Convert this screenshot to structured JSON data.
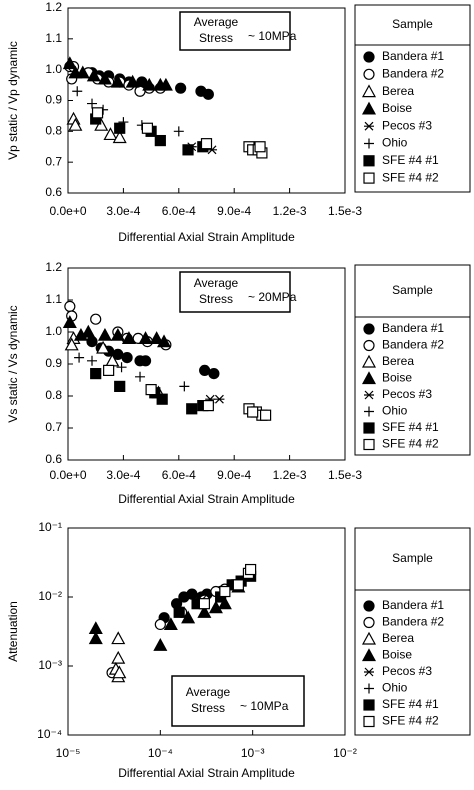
{
  "chart_data": [
    {
      "type": "scatter",
      "xlabel": "Differential Axial Strain Amplitude",
      "ylabel": "Vp static / Vp dynamic",
      "annotation": [
        "Average",
        "Stress",
        "~ 10MPa"
      ],
      "legend_title": "Sample",
      "legend": "outside-right",
      "xlim": [
        0,
        0.0015
      ],
      "ylim": [
        0.6,
        1.2
      ],
      "xscale": "linear",
      "yscale": "linear",
      "xticks": [
        {
          "value": 0,
          "label": "0.0e+0"
        },
        {
          "value": 0.0003,
          "label": "3.0e-4"
        },
        {
          "value": 0.0006,
          "label": "6.0e-4"
        },
        {
          "value": 0.0009,
          "label": "9.0e-4"
        },
        {
          "value": 0.0012,
          "label": "1.2e-3"
        },
        {
          "value": 0.0015,
          "label": "1.5e-3"
        }
      ],
      "yticks": [
        0.6,
        0.7,
        0.8,
        0.9,
        {
          "value": 1,
          "label": "1.0"
        },
        1.1,
        1.2
      ],
      "series": [
        {
          "name": "Bandera #1",
          "marker": "circle",
          "filled": true,
          "color": "#000000",
          "x": [
            0.00013,
            0.00017,
            0.00022,
            0.00028,
            0.00033,
            0.0004,
            0.00061,
            0.00072,
            0.00076
          ],
          "values": [
            0.99,
            0.98,
            0.98,
            0.97,
            0.96,
            0.96,
            0.94,
            0.93,
            0.92
          ]
        },
        {
          "name": "Bandera #2",
          "marker": "circle",
          "filled": false,
          "color": "#000000",
          "x": [
            1e-05,
            3e-05,
            2e-05,
            0.00011,
            0.00016,
            0.00022,
            0.00028,
            0.00033,
            0.00039,
            0.00044,
            0.0005
          ],
          "values": [
            1.01,
            1.01,
            0.97,
            0.99,
            0.97,
            0.96,
            0.96,
            0.95,
            0.93,
            0.94,
            0.94
          ]
        },
        {
          "name": "Berea",
          "marker": "triangle",
          "filled": false,
          "color": "#000000",
          "x": [
            3e-05,
            4e-05,
            0.00018,
            0.00023,
            0.00028
          ],
          "values": [
            0.84,
            0.82,
            0.82,
            0.79,
            0.78
          ]
        },
        {
          "name": "Boise",
          "marker": "triangle",
          "filled": true,
          "color": "#000000",
          "x": [
            1e-05,
            4e-05,
            8e-05,
            0.00014,
            0.0002,
            0.00027,
            0.00035,
            0.00044,
            0.0005,
            0.00053
          ],
          "values": [
            1.02,
            0.99,
            0.99,
            0.98,
            0.97,
            0.96,
            0.96,
            0.95,
            0.95,
            0.95
          ]
        },
        {
          "name": "Pecos #3",
          "marker": "asterisk",
          "filled": false,
          "color": "#000000",
          "x": [
            0.00067,
            0.00078
          ],
          "values": [
            0.75,
            0.74
          ]
        },
        {
          "name": "Ohio",
          "marker": "plus",
          "filled": false,
          "color": "#000000",
          "x": [
            5e-05,
            0.00013,
            0.00019,
            0.0003,
            0.0004,
            0.0006
          ],
          "values": [
            0.93,
            0.89,
            0.87,
            0.83,
            0.82,
            0.8
          ]
        },
        {
          "name": "SFE #4 #1",
          "marker": "square",
          "filled": true,
          "color": "#000000",
          "x": [
            0.00015,
            0.00028,
            0.00045,
            0.0005,
            0.00065,
            0.00073
          ],
          "values": [
            0.84,
            0.81,
            0.8,
            0.77,
            0.74,
            0.75
          ]
        },
        {
          "name": "SFE #4 #2",
          "marker": "square",
          "filled": false,
          "color": "#000000",
          "x": [
            0.00016,
            0.00043,
            0.00075,
            0.00098,
            0.001,
            0.00103,
            0.00105,
            0.00104
          ],
          "values": [
            0.86,
            0.81,
            0.76,
            0.75,
            0.74,
            0.74,
            0.73,
            0.75
          ]
        }
      ]
    },
    {
      "type": "scatter",
      "xlabel": "Differential Axial Strain Amplitude",
      "ylabel": "Vs static / Vs dynamic",
      "annotation": [
        "Average",
        "Stress",
        "~ 20MPa"
      ],
      "legend_title": "Sample",
      "legend": "outside-right",
      "xlim": [
        0,
        0.0015
      ],
      "ylim": [
        0.6,
        1.2
      ],
      "xscale": "linear",
      "yscale": "linear",
      "xticks": [
        {
          "value": 0,
          "label": "0.0e+0"
        },
        {
          "value": 0.0003,
          "label": "3.0e-4"
        },
        {
          "value": 0.0006,
          "label": "6.0e-4"
        },
        {
          "value": 0.0009,
          "label": "9.0e-4"
        },
        {
          "value": 0.0012,
          "label": "1.2e-3"
        },
        {
          "value": 0.0015,
          "label": "1.5e-3"
        }
      ],
      "yticks": [
        0.6,
        0.7,
        0.8,
        0.9,
        {
          "value": 1,
          "label": "1.0"
        },
        1.1,
        1.2
      ],
      "series": [
        {
          "name": "Bandera #1",
          "marker": "circle",
          "filled": true,
          "color": "#000000",
          "x": [
            0.00013,
            0.00018,
            0.00022,
            0.00027,
            0.00032,
            0.00039,
            0.00042,
            0.00074,
            0.00079
          ],
          "values": [
            0.97,
            0.95,
            0.94,
            0.93,
            0.92,
            0.91,
            0.91,
            0.88,
            0.87
          ]
        },
        {
          "name": "Bandera #2",
          "marker": "circle",
          "filled": false,
          "color": "#000000",
          "x": [
            1e-05,
            2e-05,
            0.00015,
            0.00027,
            0.00032,
            0.00038,
            0.00043,
            0.00053
          ],
          "values": [
            1.08,
            1.05,
            1.04,
            1.0,
            0.98,
            0.98,
            0.97,
            0.96
          ]
        },
        {
          "name": "Berea",
          "marker": "triangle",
          "filled": false,
          "color": "#000000",
          "x": [
            3e-05,
            2e-05,
            0.00019,
            0.00024,
            0.00049
          ],
          "values": [
            0.98,
            0.96,
            0.95,
            0.91,
            0.81
          ]
        },
        {
          "name": "Boise",
          "marker": "triangle",
          "filled": true,
          "color": "#000000",
          "x": [
            1e-05,
            7e-05,
            0.00011,
            0.0002,
            0.00027,
            0.00033,
            0.00042,
            0.00048,
            0.00052
          ],
          "values": [
            1.03,
            0.99,
            1.0,
            0.99,
            0.99,
            0.98,
            0.98,
            0.98,
            0.97
          ]
        },
        {
          "name": "Pecos #3",
          "marker": "asterisk",
          "filled": false,
          "color": "#000000",
          "x": [
            0.00077,
            0.00082
          ],
          "values": [
            0.79,
            0.79
          ]
        },
        {
          "name": "Ohio",
          "marker": "plus",
          "filled": false,
          "color": "#000000",
          "x": [
            6e-05,
            0.00013,
            0.00029,
            0.00039,
            0.00063
          ],
          "values": [
            0.92,
            0.91,
            0.89,
            0.86,
            0.83
          ]
        },
        {
          "name": "SFE #4 #1",
          "marker": "square",
          "filled": true,
          "color": "#000000",
          "x": [
            0.00015,
            0.00028,
            0.00047,
            0.00051,
            0.00067,
            0.00073
          ],
          "values": [
            0.87,
            0.83,
            0.81,
            0.79,
            0.76,
            0.77
          ]
        },
        {
          "name": "SFE #4 #2",
          "marker": "square",
          "filled": false,
          "color": "#000000",
          "x": [
            0.00022,
            0.00045,
            0.00076,
            0.00098,
            0.00102,
            0.00105,
            0.00107,
            0.001
          ],
          "values": [
            0.88,
            0.82,
            0.77,
            0.76,
            0.75,
            0.74,
            0.74,
            0.75
          ]
        }
      ]
    },
    {
      "type": "scatter",
      "xlabel": "Differential Axial Strain Amplitude",
      "ylabel": "Attenuation",
      "annotation": [
        "Average",
        "Stress",
        "~ 10MPa"
      ],
      "legend_title": "Sample",
      "legend": "outside-right",
      "xlim": [
        1e-05,
        0.01
      ],
      "ylim": [
        0.0001,
        0.1
      ],
      "xscale": "log",
      "yscale": "log",
      "xticks": [
        {
          "value": 1e-05,
          "label": "10⁻⁵"
        },
        {
          "value": 0.0001,
          "label": "10⁻⁴"
        },
        {
          "value": 0.001,
          "label": "10⁻³"
        },
        {
          "value": 0.01,
          "label": "10⁻²"
        }
      ],
      "yticks": [
        {
          "value": 0.0001,
          "label": "10⁻⁴"
        },
        {
          "value": 0.001,
          "label": "10⁻³"
        },
        {
          "value": 0.01,
          "label": "10⁻²"
        },
        {
          "value": 0.1,
          "label": "10⁻¹"
        }
      ],
      "series": [
        {
          "name": "Bandera #1",
          "marker": "circle",
          "filled": true,
          "color": "#000000",
          "x": [
            0.00011,
            0.00015,
            0.00018,
            0.00022,
            0.00028,
            0.00032,
            0.00045
          ],
          "values": [
            0.005,
            0.008,
            0.01,
            0.011,
            0.01,
            0.011,
            0.012
          ]
        },
        {
          "name": "Bandera #2",
          "marker": "circle",
          "filled": false,
          "color": "#000000",
          "x": [
            3e-05,
            0.0001,
            0.00017,
            0.0003,
            0.0004,
            0.0005,
            0.0006
          ],
          "values": [
            0.0008,
            0.004,
            0.006,
            0.009,
            0.012,
            0.013,
            0.015
          ]
        },
        {
          "name": "Berea",
          "marker": "triangle",
          "filled": false,
          "color": "#000000",
          "x": [
            3.5e-05,
            3.5e-05,
            3.3e-05,
            3.5e-05,
            3.6e-05
          ],
          "values": [
            0.0025,
            0.0013,
            0.0009,
            0.0007,
            0.0008
          ]
        },
        {
          "name": "Boise",
          "marker": "triangle",
          "filled": true,
          "color": "#000000",
          "x": [
            2e-05,
            2e-05,
            0.0001,
            0.00013,
            0.0002,
            0.0003,
            0.0004,
            0.0005,
            0.0007
          ],
          "values": [
            0.0035,
            0.0025,
            0.002,
            0.004,
            0.005,
            0.006,
            0.007,
            0.008,
            0.014
          ]
        },
        {
          "name": "Pecos #3",
          "marker": "asterisk",
          "filled": false,
          "color": "#000000",
          "x": [
            0.00028
          ],
          "values": [
            0.009
          ]
        },
        {
          "name": "Ohio",
          "marker": "plus",
          "filled": false,
          "color": "#000000",
          "x": [
            0.00025
          ],
          "values": [
            0.008
          ]
        },
        {
          "name": "SFE #4 #1",
          "marker": "square",
          "filled": true,
          "color": "#000000",
          "x": [
            0.00016,
            0.00025,
            0.00045,
            0.0006,
            0.00075,
            0.00095
          ],
          "values": [
            0.006,
            0.008,
            0.01,
            0.015,
            0.017,
            0.02
          ]
        },
        {
          "name": "SFE #4 #2",
          "marker": "square",
          "filled": false,
          "color": "#000000",
          "x": [
            0.0003,
            0.0005,
            0.0007,
            0.0009,
            0.00095
          ],
          "values": [
            0.008,
            0.012,
            0.015,
            0.022,
            0.025
          ]
        }
      ]
    }
  ]
}
